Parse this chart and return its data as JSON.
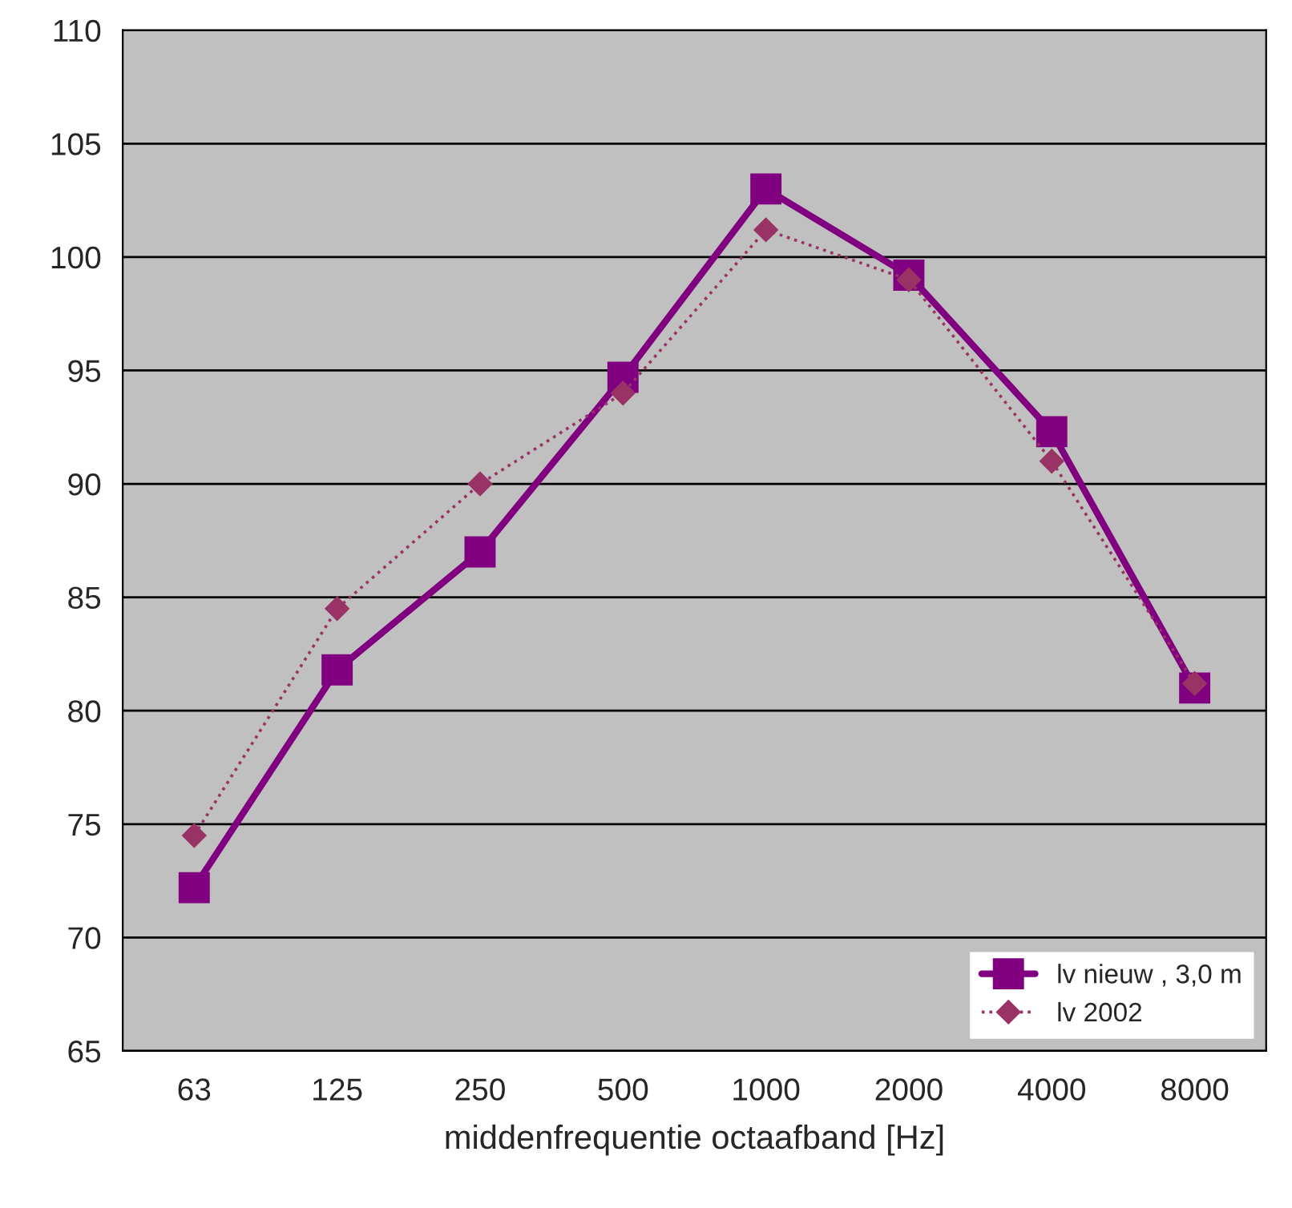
{
  "chart_data": {
    "type": "line",
    "xlabel": "middenfrequentie octaafband [Hz]",
    "categories": [
      "63",
      "125",
      "250",
      "500",
      "1000",
      "2000",
      "4000",
      "8000"
    ],
    "series": [
      {
        "name": "lv nieuw , 3,0 m",
        "color": "#800080",
        "values": [
          72.2,
          81.8,
          87.0,
          94.7,
          103.0,
          99.2,
          92.3,
          81.0
        ],
        "marker": "square",
        "line_style": "solid"
      },
      {
        "name": "lv 2002",
        "color": "#993366",
        "values": [
          74.5,
          84.5,
          90.0,
          94.0,
          101.2,
          99.0,
          91.0,
          81.2
        ],
        "marker": "diamond",
        "line_style": "dotted"
      }
    ],
    "ylim": [
      65,
      110
    ],
    "yticks": [
      65,
      70,
      75,
      80,
      85,
      90,
      95,
      100,
      105,
      110
    ],
    "grid": "y",
    "legend": "bottom right"
  }
}
